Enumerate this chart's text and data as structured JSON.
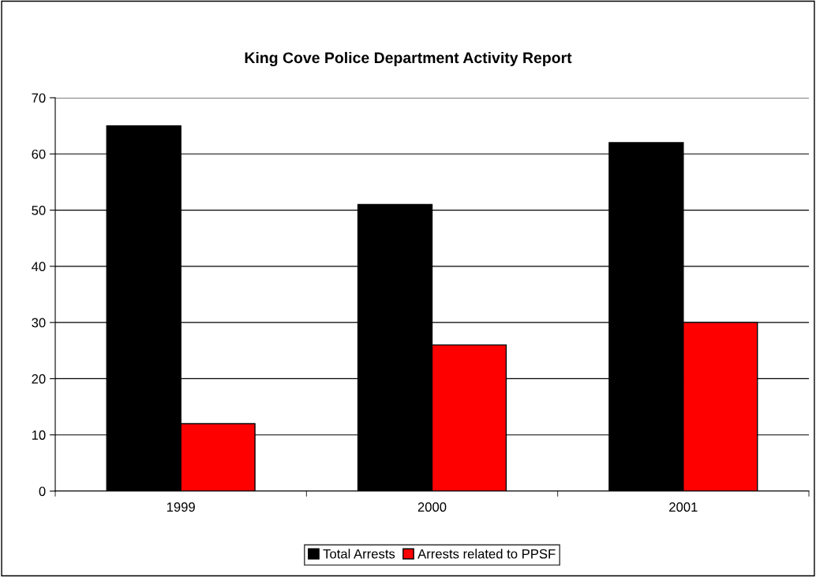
{
  "chart_data": {
    "type": "bar",
    "title": "King Cove Police Department Activity Report",
    "categories": [
      "1999",
      "2000",
      "2001"
    ],
    "series": [
      {
        "name": "Total Arrests",
        "color": "#000000",
        "values": [
          65,
          51,
          62
        ]
      },
      {
        "name": "Arrests related to PPSF",
        "color": "#ff0000",
        "values": [
          12,
          26,
          30
        ]
      }
    ],
    "ylim": [
      0,
      70
    ],
    "yticks": [
      0,
      10,
      20,
      30,
      40,
      50,
      60,
      70
    ],
    "grid": "y",
    "legend": "bottom"
  }
}
